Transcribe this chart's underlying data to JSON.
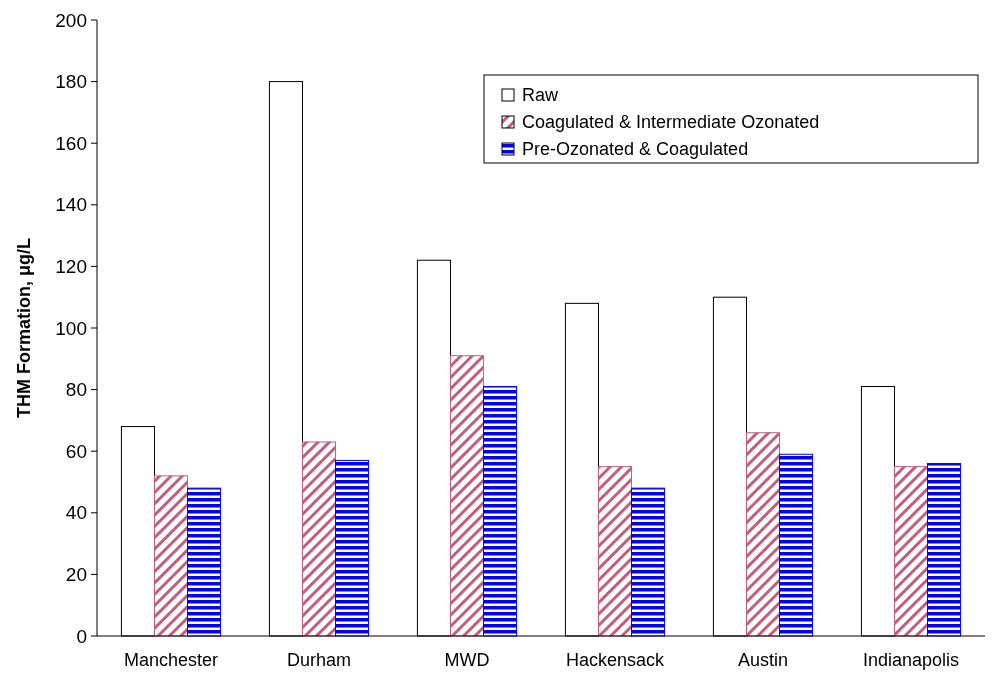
{
  "chart_data": {
    "type": "bar",
    "ylabel": "THM Formation, μg/L",
    "categories": [
      "Manchester",
      "Durham",
      "MWD",
      "Hackensack",
      "Austin",
      "Indianapolis"
    ],
    "series": [
      {
        "name": "Raw",
        "color": "#ffffff",
        "values": [
          68,
          180,
          122,
          108,
          110,
          81
        ]
      },
      {
        "name": "Coagulated & Intermediate Ozonated",
        "color": "#c06080",
        "values": [
          52,
          63,
          91,
          55,
          66,
          55
        ]
      },
      {
        "name": "Pre-Ozonated & Coagulated",
        "color": "#0000ff",
        "values": [
          48,
          57,
          81,
          48,
          59,
          56
        ]
      }
    ],
    "ylim": [
      0,
      200
    ],
    "yticks": [
      0,
      20,
      40,
      60,
      80,
      100,
      120,
      140,
      160,
      180,
      200
    ],
    "grid": false,
    "legend": "top right"
  }
}
